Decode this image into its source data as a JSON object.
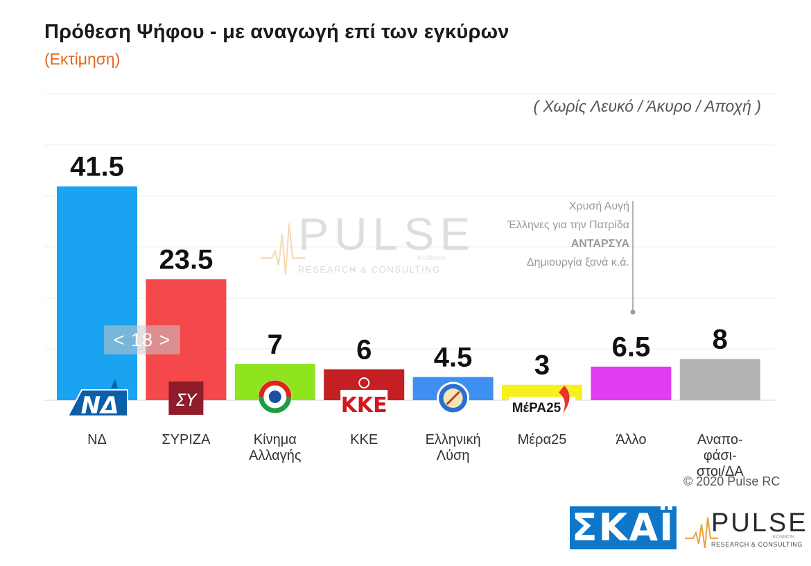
{
  "header": {
    "title": "Πρόθεση Ψήφου - με αναγωγή επί των εγκύρων",
    "subtitle": "(Εκτίμηση)",
    "note": "( Χωρίς Λευκό / Άκυρο / Αποχή )"
  },
  "chart_data": {
    "type": "bar",
    "categories": [
      "ΝΔ",
      "ΣΥΡΙΖΑ",
      "Κίνημα Αλλαγής",
      "ΚΚΕ",
      "Ελληνική Λύση",
      "Μέρα25",
      "Άλλο",
      "Αναπο-φάσι-στοι/ΔΑ"
    ],
    "category_lines": [
      [
        "ΝΔ"
      ],
      [
        "ΣΥΡΙΖΑ"
      ],
      [
        "Κίνημα",
        "Αλλαγής"
      ],
      [
        "ΚΚΕ"
      ],
      [
        "Ελληνική",
        "Λύση"
      ],
      [
        "Μέρα25"
      ],
      [
        "Άλλο"
      ],
      [
        "Αναπο-",
        "φάσι-",
        "στοι/ΔΑ"
      ]
    ],
    "values": [
      41.5,
      23.5,
      7,
      6,
      4.5,
      3,
      6.5,
      8
    ],
    "value_labels": [
      "41.5",
      "23.5",
      "7",
      "6",
      "4.5",
      "3",
      "6.5",
      "8"
    ],
    "colors": [
      "#1aa3f0",
      "#f5484b",
      "#8fe41e",
      "#c41f22",
      "#3f8ff0",
      "#f7f01f",
      "#e23cf1",
      "#b3b3b3"
    ],
    "ylim": [
      0,
      50
    ],
    "grid": true,
    "legend": "none",
    "party_marks": [
      "ΝΔ",
      "ΣΥ",
      "",
      "ΚΚΕ",
      "",
      "ΜέΡΑ25",
      "",
      ""
    ],
    "other_annotation": [
      "Χρυσή Αυγή",
      "Έλληνες για την Πατρίδα",
      "ΑΝΤΑΡΣΥΑ",
      "Δημιουργία ξανά   κ.ά."
    ]
  },
  "footer": {
    "copyright": "© 2020 Pulse RC",
    "skai": "ΣΚΑΪ",
    "pulse_name": "PULSE",
    "pulse_tagline": "RESEARCH & CONSULTING",
    "pulse_sub": "KOSMON"
  },
  "watermark": {
    "name": "PULSE",
    "tagline": "RESEARCH & CONSULTING",
    "sub": "KOSMON"
  },
  "pager": {
    "label": "< 18 >"
  }
}
